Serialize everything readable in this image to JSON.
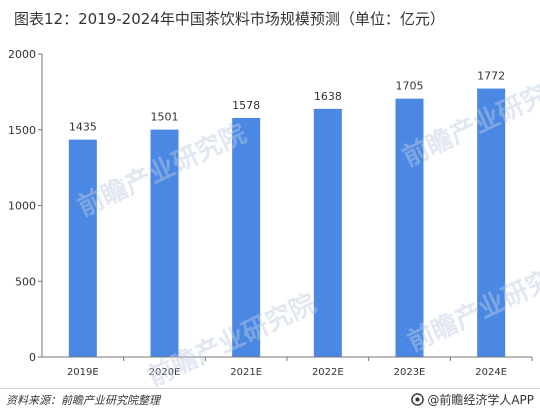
{
  "title": "图表12：2019-2024年中国茶饮料市场规模预测（单位：亿元）",
  "source": "资料来源：前瞻产业研究院整理",
  "brand": "@前瞻经济学人APP",
  "watermark": "前瞻产业研究院",
  "colors": {
    "bar": "#4a88e3",
    "axis": "#777777",
    "text": "#333333"
  },
  "chart_data": {
    "type": "bar",
    "categories": [
      "2019E",
      "2020E",
      "2021E",
      "2022E",
      "2023E",
      "2024E"
    ],
    "values": [
      1435,
      1501,
      1578,
      1638,
      1705,
      1772
    ],
    "data_labels": [
      "1435",
      "1501",
      "1578",
      "1638",
      "1705",
      "1772"
    ],
    "ylim": [
      0,
      2000
    ],
    "yticks": [
      0,
      500,
      1000,
      1500,
      2000
    ],
    "grid": false,
    "xlabel": "",
    "ylabel": ""
  }
}
